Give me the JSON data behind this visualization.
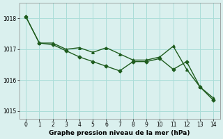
{
  "line1_x": [
    0,
    1,
    2,
    3,
    4,
    5,
    6,
    7,
    8,
    9,
    10,
    11,
    12,
    13,
    14
  ],
  "line1_y": [
    1018.05,
    1017.2,
    1017.2,
    1017.0,
    1017.05,
    1016.9,
    1017.05,
    1016.85,
    1016.65,
    1016.65,
    1016.75,
    1017.1,
    1016.35,
    1015.78,
    1015.42
  ],
  "line2_x": [
    0,
    1,
    2,
    3,
    4,
    5,
    6,
    7,
    8,
    9,
    10,
    11,
    12,
    13,
    14
  ],
  "line2_y": [
    1018.05,
    1017.2,
    1017.15,
    1016.95,
    1016.75,
    1016.6,
    1016.45,
    1016.3,
    1016.6,
    1016.6,
    1016.7,
    1016.35,
    1016.6,
    1015.78,
    1015.35
  ],
  "line_color": "#1e5c1e",
  "marker1": "^",
  "marker2": "D",
  "marker_size": 2.5,
  "bg_color": "#daf0ee",
  "grid_color": "#aaddd8",
  "xlabel": "Graphe pression niveau de la mer (hPa)",
  "ylim": [
    1014.75,
    1018.5
  ],
  "xlim": [
    -0.5,
    14.5
  ],
  "yticks": [
    1015,
    1016,
    1017,
    1018
  ],
  "xticks": [
    0,
    1,
    2,
    3,
    4,
    5,
    6,
    7,
    8,
    9,
    10,
    11,
    12,
    13,
    14
  ],
  "tick_fontsize": 5.5,
  "xlabel_fontsize": 6.5,
  "linewidth": 1.0
}
